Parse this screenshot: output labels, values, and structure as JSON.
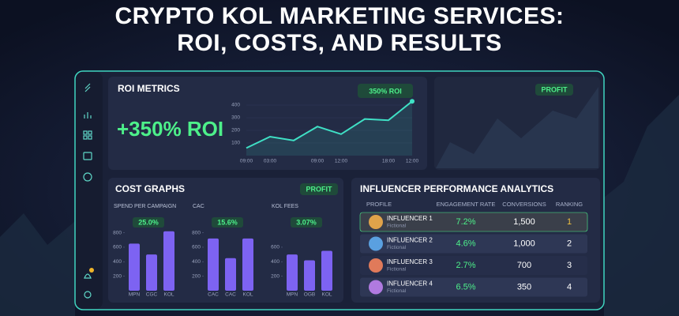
{
  "header": {
    "title_line1": "CRYPTO KOL MARKETING SERVICES:",
    "title_line2": "ROI, COSTS, AND RESULTS"
  },
  "roi": {
    "title": "ROI METRICS",
    "headline": "+350% ROI",
    "badge": "350% ROI",
    "chart": {
      "type": "line",
      "categories": [
        "09:00",
        "03:00",
        null,
        "09:00",
        "12:00",
        null,
        "18:00",
        "12:00"
      ],
      "values": [
        60,
        150,
        120,
        230,
        170,
        290,
        280,
        430
      ],
      "color": "#3fe0c5",
      "ylim": [
        0,
        450
      ],
      "yticks": [
        100,
        200,
        300,
        400
      ]
    }
  },
  "profit_panel": {
    "badge": "PROFIT"
  },
  "cost": {
    "title": "COST GRAPHS",
    "badge": "PROFIT",
    "charts": [
      {
        "type": "bar",
        "label": "SPEND PER CAMPAIGN",
        "badge": "25.0%",
        "categories": [
          "MPN",
          "CGC",
          "KOL"
        ],
        "values": [
          650,
          500,
          820
        ],
        "color": "#7d63f2",
        "ylim": [
          0,
          850
        ],
        "yticks": [
          200,
          400,
          600,
          800
        ]
      },
      {
        "type": "bar",
        "label": "CAC",
        "badge": "15.6%",
        "categories": [
          "CAC",
          "CAC",
          "KOL"
        ],
        "values": [
          720,
          450,
          720
        ],
        "color": "#7d63f2",
        "ylim": [
          0,
          850
        ],
        "yticks": [
          200,
          400,
          600,
          800
        ]
      },
      {
        "type": "bar",
        "label": "KOL FEES",
        "badge": "3.07%",
        "categories": [
          "MPN",
          "OGB",
          "KOL"
        ],
        "values": [
          500,
          420,
          550
        ],
        "color": "#7d63f2",
        "ylim": [
          0,
          850
        ],
        "yticks": [
          200,
          400,
          600
        ]
      }
    ]
  },
  "influencers": {
    "title": "INFLUENCER PERFORMANCE ANALYTICS",
    "columns": [
      "PROFILE",
      "ENGAGEMENT RATE",
      "CONVERSIONS",
      "RANKING"
    ],
    "rows": [
      [
        "INFLUENCER 1",
        "Fictional",
        "7.2%",
        "1,500",
        "1"
      ],
      [
        "INFLUENCER 2",
        "Fictional",
        "4.6%",
        "1,000",
        "2"
      ],
      [
        "INFLUENCER 3",
        "Fictional",
        "2.7%",
        "700",
        "3"
      ],
      [
        "INFLUENCER 4",
        "Fictional",
        "6.5%",
        "350",
        "4"
      ]
    ]
  }
}
